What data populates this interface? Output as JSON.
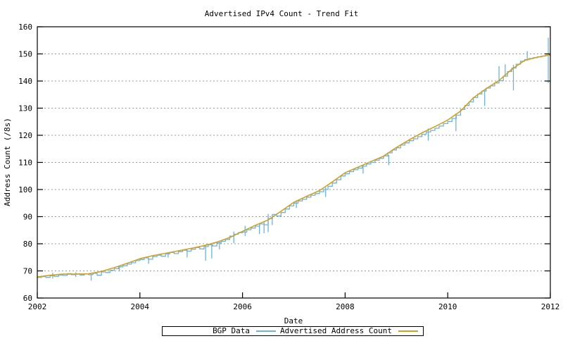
{
  "title": "Advertised IPv4 Count - Trend Fit",
  "axes": {
    "x_label": "Date",
    "y_label": "Address Count (/8s)"
  },
  "legend": {
    "entries": [
      {
        "label": "BGP Data",
        "color": "#6db3de"
      },
      {
        "label": "Advertised Address Count",
        "color": "#d4a020"
      }
    ]
  },
  "colors": {
    "background": "#ffffff",
    "border": "#000000",
    "grid": "#999999",
    "bgp_line": "#6db3de",
    "trend_line": "#d4a020"
  },
  "chart_data": {
    "type": "line",
    "title": "Advertised IPv4 Count - Trend Fit",
    "xlabel": "Date",
    "ylabel": "Address Count (/8s)",
    "xlim": [
      2002,
      2012
    ],
    "ylim": [
      60,
      160
    ],
    "xticks": [
      2002,
      2004,
      2006,
      2008,
      2010,
      2012
    ],
    "yticks": [
      60,
      70,
      80,
      90,
      100,
      110,
      120,
      130,
      140,
      150,
      160
    ],
    "grid": "horizontal-dashed",
    "legend_position": "bottom-center-outside",
    "series": [
      {
        "name": "BGP Data",
        "color": "#6db3de",
        "style": "noisy-step",
        "x_start": 2002,
        "x_step": 0.0833333,
        "values": [
          67.6,
          67.9,
          67.6,
          68.2,
          68.0,
          68.5,
          68.3,
          69.0,
          68.6,
          68.9,
          68.5,
          68.9,
          68.6,
          69.1,
          68.4,
          69.6,
          69.4,
          70.2,
          70.8,
          71.5,
          71.9,
          72.5,
          73.0,
          73.8,
          74.2,
          74.8,
          74.3,
          75.3,
          75.8,
          75.4,
          76.3,
          76.8,
          76.4,
          77.1,
          77.6,
          77.3,
          78.0,
          78.6,
          78.1,
          79.0,
          79.6,
          79.2,
          80.3,
          80.9,
          81.6,
          82.8,
          83.5,
          84.1,
          84.3,
          85.2,
          85.8,
          86.5,
          87.3,
          87.0,
          89.3,
          90.8,
          90.2,
          91.5,
          92.8,
          94.0,
          95.0,
          95.8,
          96.4,
          97.2,
          97.9,
          98.5,
          99.2,
          100.0,
          101.2,
          102.4,
          103.6,
          105.0,
          105.8,
          106.6,
          107.3,
          107.9,
          108.6,
          109.4,
          110.0,
          110.8,
          111.5,
          112.4,
          113.5,
          114.6,
          115.4,
          116.4,
          117.2,
          118.0,
          118.7,
          119.5,
          120.4,
          121.2,
          121.8,
          122.6,
          123.4,
          124.3,
          125.1,
          126.2,
          127.4,
          129.5,
          131.0,
          132.3,
          133.9,
          135.2,
          136.3,
          137.4,
          138.2,
          139.3,
          140.1,
          141.8,
          143.5,
          144.8,
          146.2,
          147.3,
          147.9,
          148.3,
          148.6,
          148.9,
          149.2,
          149.5,
          149.8
        ]
      },
      {
        "name": "Advertised Address Count",
        "color": "#d4a020",
        "style": "smooth",
        "x_start": 2002,
        "x_step": 0.25,
        "values": [
          67.8,
          68.4,
          68.8,
          68.8,
          68.9,
          69.8,
          71.2,
          72.8,
          74.5,
          75.6,
          76.5,
          77.4,
          78.3,
          79.3,
          80.6,
          82.3,
          84.6,
          86.8,
          88.8,
          92.0,
          95.3,
          97.5,
          99.6,
          102.8,
          106.2,
          108.2,
          110.3,
          112.3,
          115.5,
          118.3,
          120.9,
          123.2,
          125.6,
          128.9,
          133.8,
          137.2,
          140.2,
          144.3,
          147.6,
          148.8,
          149.7
        ]
      }
    ],
    "bgp_spikes": [
      [
        2002.3,
        69.3,
        67.2
      ],
      [
        2002.75,
        69.5,
        67.8
      ],
      [
        2003.05,
        68.9,
        66.4
      ],
      [
        2003.6,
        71.5,
        69.8
      ],
      [
        2004.17,
        74.6,
        72.6
      ],
      [
        2004.55,
        76.7,
        74.9
      ],
      [
        2004.92,
        77.8,
        75.0
      ],
      [
        2005.28,
        79.5,
        73.8
      ],
      [
        2005.4,
        80.1,
        74.6
      ],
      [
        2005.55,
        81.0,
        77.9
      ],
      [
        2005.83,
        84.5,
        80.2
      ],
      [
        2006.05,
        86.6,
        82.9
      ],
      [
        2006.33,
        87.6,
        83.6
      ],
      [
        2006.42,
        88.3,
        83.9
      ],
      [
        2006.5,
        91.0,
        84.3
      ],
      [
        2006.58,
        90.6,
        86.9
      ],
      [
        2007.05,
        96.0,
        93.2
      ],
      [
        2007.62,
        100.8,
        97.3
      ],
      [
        2008.35,
        109.0,
        105.9
      ],
      [
        2008.85,
        112.8,
        109.0
      ],
      [
        2009.62,
        122.5,
        118.0
      ],
      [
        2010.16,
        128.0,
        121.5
      ],
      [
        2010.72,
        136.8,
        130.8
      ],
      [
        2011.0,
        145.5,
        140.1
      ],
      [
        2011.12,
        146.2,
        141.5
      ],
      [
        2011.28,
        146.0,
        136.5
      ],
      [
        2011.55,
        151.0,
        147.5
      ],
      [
        2011.96,
        156.0,
        139.2
      ]
    ]
  }
}
